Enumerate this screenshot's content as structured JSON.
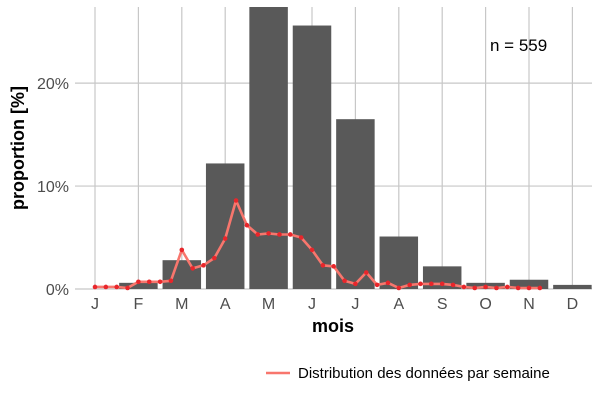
{
  "chart_data": {
    "type": "bar",
    "xlabel": "mois",
    "ylabel": "proportion [%]",
    "categories": [
      "J",
      "F",
      "M",
      "A",
      "M",
      "J",
      "J",
      "A",
      "S",
      "O",
      "N",
      "D"
    ],
    "values": [
      0.0,
      0.6,
      2.8,
      12.2,
      27.4,
      25.6,
      16.5,
      5.1,
      2.2,
      0.6,
      0.9,
      0.4
    ],
    "ylim": [
      0,
      27.4
    ],
    "yticks": [
      0,
      10,
      20
    ],
    "ytick_labels": [
      "0%",
      "10%",
      "20%"
    ],
    "annotation": "n = 559",
    "grid": true,
    "bar_color": "#595959",
    "line_series": {
      "name": "Distribution des données par semaine",
      "color": "#f8766d",
      "point_color": "#e8262b",
      "x_month": [
        1.0,
        1.25,
        1.5,
        1.75,
        2.0,
        2.25,
        2.5,
        2.75,
        3.0,
        3.25,
        3.5,
        3.75,
        4.0,
        4.25,
        4.5,
        4.75,
        5.0,
        5.25,
        5.5,
        5.75,
        6.0,
        6.25,
        6.5,
        6.75,
        7.0,
        7.25,
        7.5,
        7.75,
        8.0,
        8.25,
        8.5,
        8.75,
        9.0,
        9.25,
        9.5,
        9.75,
        10.0,
        10.25,
        10.5,
        10.75,
        11.0,
        11.25
      ],
      "values": [
        0.2,
        0.2,
        0.2,
        0.1,
        0.7,
        0.7,
        0.7,
        0.8,
        3.8,
        2.0,
        2.3,
        3.0,
        4.9,
        8.6,
        6.2,
        5.3,
        5.4,
        5.3,
        5.3,
        5.0,
        3.8,
        2.3,
        2.2,
        0.8,
        0.5,
        1.6,
        0.4,
        0.6,
        0.1,
        0.4,
        0.5,
        0.5,
        0.5,
        0.4,
        0.2,
        0.1,
        0.2,
        0.1,
        0.2,
        0.1,
        0.1,
        0.1
      ]
    },
    "legend": {
      "position": "bottom-right",
      "label": "Distribution des données par semaine"
    }
  }
}
